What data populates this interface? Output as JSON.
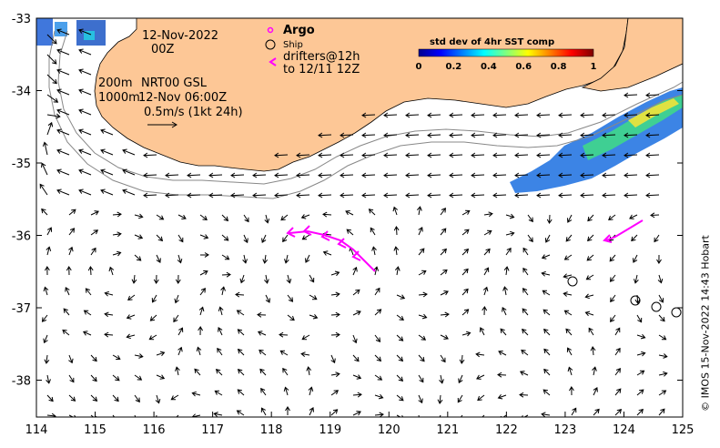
{
  "map": {
    "x_ticks": [
      "114",
      "115",
      "116",
      "117",
      "118",
      "119",
      "120",
      "121",
      "122",
      "123",
      "124",
      "125"
    ],
    "y_ticks": [
      "-33",
      "-34",
      "-35",
      "-36",
      "-37",
      "-38"
    ],
    "date_line1": "12-Nov-2022",
    "date_line2": "00Z",
    "depth_200": "200m",
    "depth_1000": "1000m",
    "product": "NRT00 GSL",
    "product_time": "12-Nov 06:00Z",
    "scale_label": "0.5m/s (1kt 24h)"
  },
  "legend": {
    "argo": "Argo",
    "ship": "Ship",
    "drifters_line1": "drifters@12h",
    "drifters_line2": "to 12/11 12Z"
  },
  "colorbar": {
    "title": "std dev of 4hr SST comp",
    "ticks": [
      "0",
      "0.2",
      "0.4",
      "0.6",
      "0.8",
      "1"
    ]
  },
  "credit": "© IMOS 15-Nov-2022 14:43 Hobart",
  "colors": {
    "land": "#fdc796",
    "drifter": "#ff00ff",
    "argo": "#ff00ff"
  }
}
